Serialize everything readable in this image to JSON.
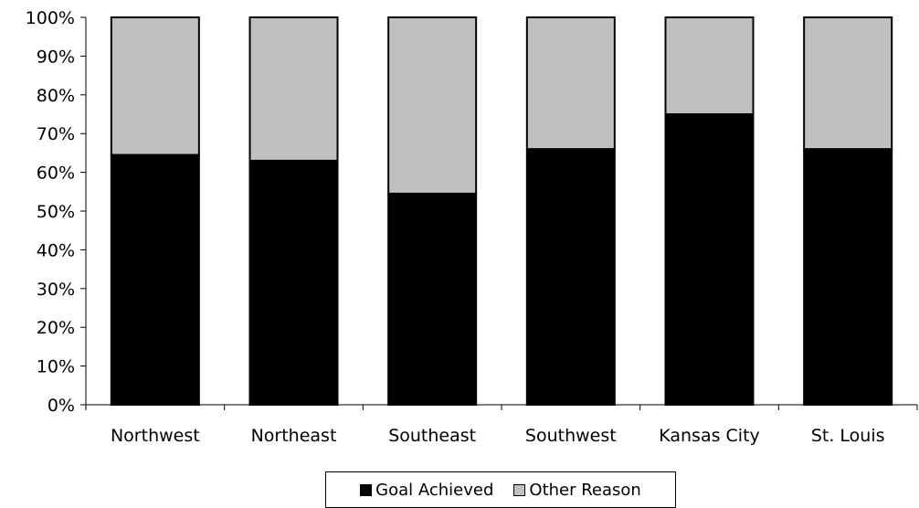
{
  "chart_data": {
    "type": "bar",
    "stacked": true,
    "categories": [
      "Northwest",
      "Northeast",
      "Southeast",
      "Southwest",
      "Kansas City",
      "St. Louis"
    ],
    "series": [
      {
        "name": "Goal Achieved",
        "color": "#000000",
        "values": [
          64.5,
          63,
          54.5,
          66,
          75,
          66
        ]
      },
      {
        "name": "Other Reason",
        "color": "#c0c0c0",
        "values": [
          35.5,
          37,
          45.5,
          34,
          25,
          34
        ]
      }
    ],
    "ylim": [
      0,
      100
    ],
    "yticks": [
      "0%",
      "10%",
      "20%",
      "30%",
      "40%",
      "50%",
      "60%",
      "70%",
      "80%",
      "90%",
      "100%"
    ],
    "grid": false,
    "legend_position": "bottom",
    "title": "",
    "xlabel": "",
    "ylabel": ""
  }
}
